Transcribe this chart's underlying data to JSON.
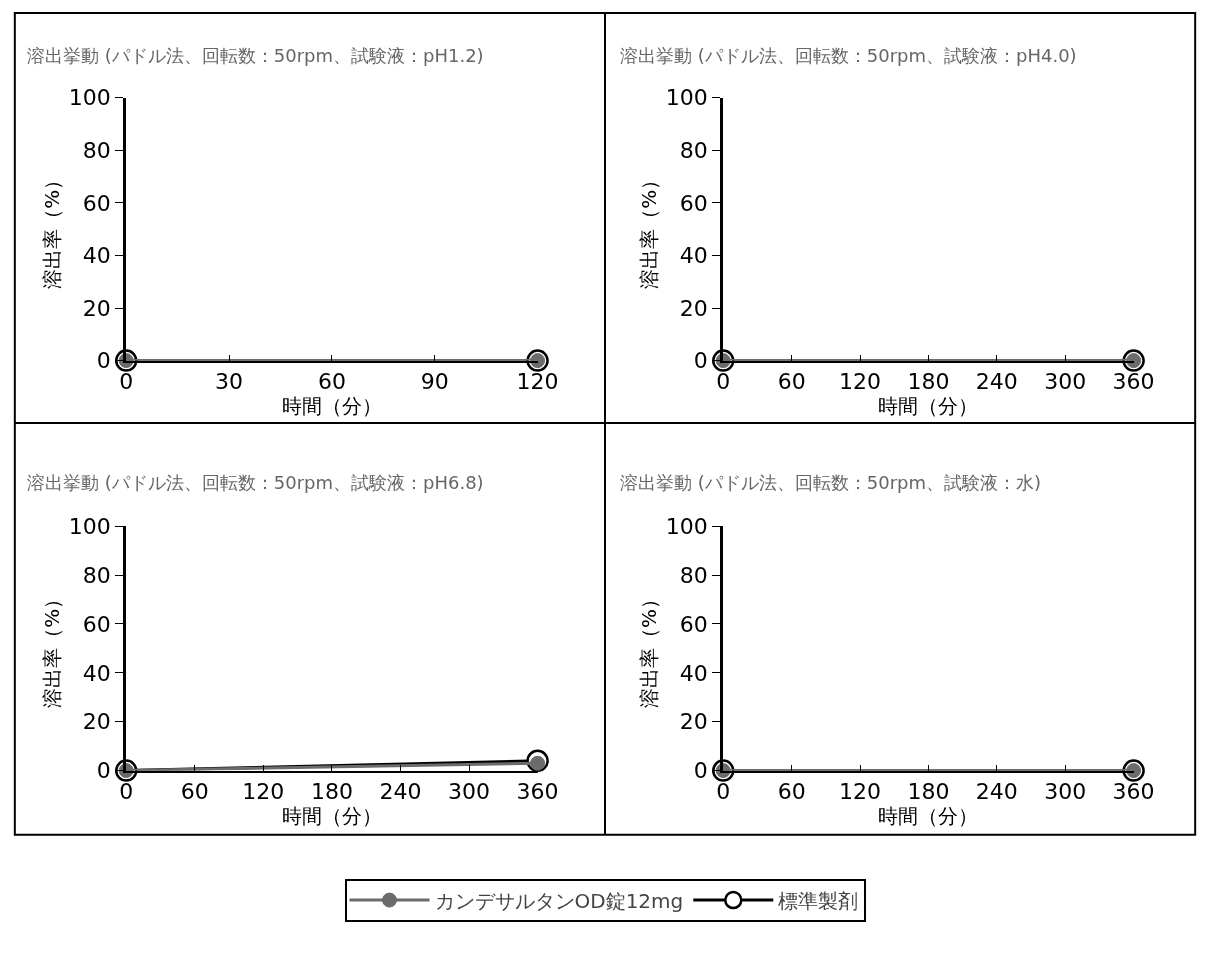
{
  "chart_data": [
    {
      "type": "line",
      "title": "溶出挙動 (パドル法、回転数：50rpm、試験液：pH1.2)",
      "xlabel": "時間（分）",
      "ylabel": "溶出率（%）",
      "x": [
        0,
        120
      ],
      "xlim": [
        0,
        120
      ],
      "xticks": [
        0,
        30,
        60,
        90,
        120
      ],
      "ylim": [
        0,
        100
      ],
      "yticks": [
        0,
        20,
        40,
        60,
        80,
        100
      ],
      "marker": "circle",
      "legend": "bottom",
      "series": [
        {
          "name": "カンデサルタンOD錠12mg",
          "color": "#6b6b6b",
          "values": [
            0,
            0
          ]
        },
        {
          "name": "標準製剤",
          "color": "#000000",
          "values": [
            0,
            0
          ]
        }
      ]
    },
    {
      "type": "line",
      "title": "溶出挙動 (パドル法、回転数：50rpm、試験液：pH4.0)",
      "xlabel": "時間（分）",
      "ylabel": "溶出率（%）",
      "x": [
        0,
        360
      ],
      "xlim": [
        0,
        360
      ],
      "xticks": [
        0,
        60,
        120,
        180,
        240,
        300,
        360
      ],
      "ylim": [
        0,
        100
      ],
      "yticks": [
        0,
        20,
        40,
        60,
        80,
        100
      ],
      "marker": "circle",
      "series": [
        {
          "color": "#6b6b6b",
          "values": [
            0,
            0
          ]
        },
        {
          "color": "#000000",
          "values": [
            0,
            0
          ]
        }
      ]
    },
    {
      "type": "line",
      "title": "溶出挙動 (パドル法、回転数：50rpm、試験液：pH6.8)",
      "xlabel": "時間（分）",
      "ylabel": "溶出率（%）",
      "x": [
        0,
        360
      ],
      "xlim": [
        0,
        360
      ],
      "xticks": [
        0,
        60,
        120,
        180,
        240,
        300,
        360
      ],
      "ylim": [
        0,
        100
      ],
      "yticks": [
        0,
        20,
        40,
        60,
        80,
        100
      ],
      "marker": "circle",
      "series": [
        {
          "color": "#6b6b6b",
          "values": [
            0,
            3
          ]
        },
        {
          "color": "#000000",
          "values": [
            0,
            4
          ]
        }
      ]
    },
    {
      "type": "line",
      "title": "溶出挙動 (パドル法、回転数：50rpm、試験液：水)",
      "xlabel": "時間（分）",
      "ylabel": "溶出率（%）",
      "x": [
        0,
        360
      ],
      "xlim": [
        0,
        360
      ],
      "xticks": [
        0,
        60,
        120,
        180,
        240,
        300,
        360
      ],
      "ylim": [
        0,
        100
      ],
      "yticks": [
        0,
        20,
        40,
        60,
        80,
        100
      ],
      "marker": "circle",
      "series": [
        {
          "color": "#6b6b6b",
          "values": [
            0,
            0
          ]
        },
        {
          "color": "#000000",
          "values": [
            0,
            0
          ]
        }
      ]
    }
  ]
}
